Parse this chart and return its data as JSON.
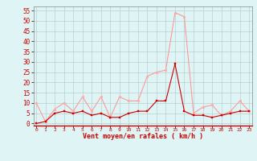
{
  "x": [
    0,
    1,
    2,
    3,
    4,
    5,
    6,
    7,
    8,
    9,
    10,
    11,
    12,
    13,
    14,
    15,
    16,
    17,
    18,
    19,
    20,
    21,
    22,
    23
  ],
  "rafales": [
    10,
    1,
    7,
    10,
    6,
    13,
    6,
    13,
    3,
    13,
    11,
    11,
    23,
    25,
    26,
    54,
    52,
    5,
    8,
    9,
    4,
    6,
    11,
    6
  ],
  "moyen": [
    0,
    1,
    5,
    6,
    5,
    6,
    4,
    5,
    3,
    3,
    5,
    6,
    6,
    11,
    11,
    29,
    6,
    4,
    4,
    3,
    4,
    5,
    6,
    6
  ],
  "line_color_rafales": "#ff9999",
  "line_color_moyen": "#cc0000",
  "marker_color_rafales": "#ffaaaa",
  "marker_color_moyen": "#cc0000",
  "bg_color": "#dff4f4",
  "grid_color": "#b0c8c8",
  "ylabel_ticks": [
    0,
    5,
    10,
    15,
    20,
    25,
    30,
    35,
    40,
    45,
    50,
    55
  ],
  "xlabel": "Vent moyen/en rafales ( km/h )",
  "xlabel_color": "#cc0000",
  "tick_color": "#cc0000",
  "ylim": [
    -1,
    57
  ],
  "xlim": [
    -0.3,
    23.3
  ]
}
